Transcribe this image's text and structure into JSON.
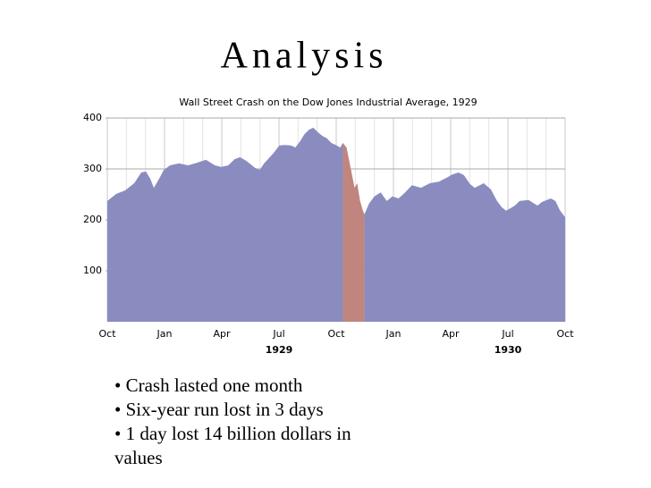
{
  "slide_title": "Analysis",
  "chart_data": {
    "type": "area",
    "title": "Wall Street Crash on the Dow Jones Industrial Average, 1929",
    "xlim": [
      0,
      24
    ],
    "ylim": [
      0,
      400
    ],
    "xticks": [
      {
        "value": 0,
        "label": "Oct"
      },
      {
        "value": 3,
        "label": "Jan"
      },
      {
        "value": 6,
        "label": "Apr"
      },
      {
        "value": 9,
        "label": "Jul"
      },
      {
        "value": 12,
        "label": "Oct"
      },
      {
        "value": 15,
        "label": "Jan"
      },
      {
        "value": 18,
        "label": "Apr"
      },
      {
        "value": 21,
        "label": "Jul"
      },
      {
        "value": 24,
        "label": "Oct"
      }
    ],
    "year_labels": [
      {
        "value": 9,
        "label": "1929"
      },
      {
        "value": 21,
        "label": "1930"
      }
    ],
    "yticks": [
      100,
      200,
      300,
      400
    ],
    "grid": true,
    "minor_grid": true,
    "series": [
      {
        "color": "#8a8cc0",
        "x": [
          0,
          0.47,
          0.94,
          1.41,
          1.78,
          2.02,
          2.25,
          2.44,
          2.72,
          2.96,
          3.29,
          3.76,
          4.23,
          4.7,
          5.17,
          5.64,
          5.97,
          6.34,
          6.67,
          6.95,
          7.28,
          7.75,
          7.99,
          8.22,
          8.69,
          9.02,
          9.3,
          9.63,
          9.86,
          10.1,
          10.33,
          10.57,
          10.8,
          11.04,
          11.27,
          11.51,
          11.74,
          11.98,
          12.21,
          12.35,
          12.9,
          13.48,
          13.72,
          14.0,
          14.33,
          14.65,
          14.94,
          15.27,
          15.59,
          15.97,
          16.44,
          16.91,
          17.38,
          17.85,
          18.08,
          18.41,
          18.69,
          19.02,
          19.26,
          19.73,
          20.1,
          20.43,
          20.67,
          20.9,
          21.14,
          21.37,
          21.61,
          22.08,
          22.55,
          22.78,
          23.25,
          23.49,
          23.72,
          24.0
        ],
        "values": [
          237,
          251,
          258,
          272,
          293,
          295,
          281,
          263,
          281,
          298,
          307,
          311,
          307,
          312,
          318,
          307,
          304,
          307,
          319,
          323,
          316,
          302,
          298,
          311,
          330,
          346,
          347,
          346,
          342,
          354,
          368,
          377,
          381,
          372,
          365,
          360,
          351,
          347,
          342,
          351,
          null,
          211,
          232,
          246,
          254,
          237,
          246,
          242,
          253,
          268,
          263,
          272,
          275,
          284,
          289,
          293,
          288,
          270,
          263,
          272,
          260,
          237,
          225,
          218,
          223,
          228,
          237,
          239,
          228,
          235,
          242,
          237,
          219,
          205
        ]
      },
      {
        "color": "#c0857f",
        "x": [
          12.35,
          12.54,
          12.68,
          12.82,
          12.96,
          13.1,
          13.25,
          13.39,
          13.48
        ],
        "values": [
          351,
          342,
          316,
          290,
          263,
          272,
          237,
          219,
          211
        ]
      }
    ]
  },
  "bullets": [
    "Crash lasted one month",
    "Six-year run lost in 3 days",
    "1 day lost 14 billion dollars in values"
  ]
}
